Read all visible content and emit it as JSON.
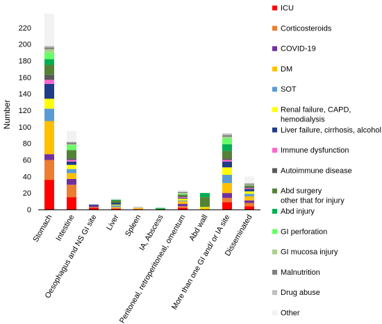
{
  "chart_data": {
    "type": "bar",
    "stacked": true,
    "title": "",
    "xlabel": "",
    "ylabel": "Number",
    "ylim": [
      0,
      230
    ],
    "yticks": [
      0,
      20,
      40,
      60,
      80,
      100,
      120,
      140,
      160,
      180,
      200,
      220
    ],
    "grid": false,
    "legend_position": "right",
    "categories": [
      "Stomach",
      "Intestine",
      "Oesophagus and NS GI site",
      "Liver",
      "Spleen",
      "IA, Abscess",
      "Peritoneal, retroperitoneal, omentum",
      "Abd wall",
      "More  than one GI and/ or IA site",
      "Disseminated"
    ],
    "series": [
      {
        "name": "ICU",
        "color": "#ff0000",
        "values": [
          36,
          15,
          2,
          1,
          0,
          0,
          2,
          0,
          9,
          4
        ]
      },
      {
        "name": "Corticosteroids",
        "color": "#ed7d31",
        "values": [
          24,
          15,
          1,
          1,
          1,
          0,
          2,
          0,
          5,
          4
        ]
      },
      {
        "name": "COVID-19",
        "color": "#7030a0",
        "values": [
          7,
          7,
          2,
          0,
          0,
          0,
          3,
          0,
          6,
          3
        ]
      },
      {
        "name": "DM",
        "color": "#ffc000",
        "values": [
          40,
          7,
          0,
          1,
          1,
          0,
          3,
          2,
          12,
          5
        ]
      },
      {
        "name": "SOT",
        "color": "#5b9bd5",
        "values": [
          15,
          5,
          0,
          2,
          0,
          0,
          1,
          0,
          10,
          3
        ]
      },
      {
        "name": "Renal failure, CAPD,\nhemodialysis",
        "color": "#ffff00",
        "values": [
          12,
          5,
          0,
          1,
          0,
          0,
          2,
          1,
          9,
          3
        ]
      },
      {
        "name": "Liver failure, cirrhosis, alcohol",
        "color": "#1f3c88",
        "values": [
          18,
          4,
          1,
          2,
          0,
          0,
          1,
          0,
          7,
          3
        ]
      },
      {
        "name": "Immune dysfunction",
        "color": "#ff66cc",
        "values": [
          5,
          2,
          0,
          0,
          0,
          0,
          1,
          0,
          2,
          1
        ]
      },
      {
        "name": "Autoimmune disease",
        "color": "#595959",
        "values": [
          6,
          2,
          0,
          0,
          0,
          0,
          1,
          0,
          2,
          1
        ]
      },
      {
        "name": "Abd surgery\nother that for injury",
        "color": "#548235",
        "values": [
          12,
          10,
          0,
          3,
          0,
          1,
          2,
          12,
          9,
          2
        ]
      },
      {
        "name": "Abd injury",
        "color": "#00b050",
        "values": [
          7,
          0,
          0,
          1,
          0,
          1,
          0,
          5,
          8,
          0
        ]
      },
      {
        "name": "GI perforation",
        "color": "#66ff66",
        "values": [
          8,
          6,
          0,
          0,
          0,
          0,
          1,
          0,
          7,
          0
        ]
      },
      {
        "name": "GI mucosa injury",
        "color": "#a9d18e",
        "values": [
          4,
          1,
          0,
          0,
          0,
          0,
          1,
          0,
          2,
          1
        ]
      },
      {
        "name": "Malnutrition",
        "color": "#808080",
        "values": [
          2,
          2,
          0,
          0,
          0,
          0,
          1,
          0,
          2,
          1
        ]
      },
      {
        "name": "Drug abuse",
        "color": "#bfbfbf",
        "values": [
          2,
          1,
          0,
          0,
          1,
          0,
          1,
          0,
          2,
          1
        ]
      },
      {
        "name": "Other",
        "color": "#f2f2f2",
        "values": [
          39,
          13,
          0,
          2,
          1,
          0,
          2,
          0,
          0,
          8
        ]
      }
    ]
  }
}
